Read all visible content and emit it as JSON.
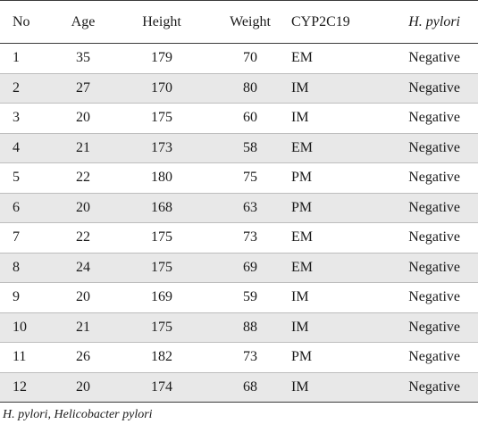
{
  "table": {
    "headers": {
      "no": "No",
      "age": "Age",
      "height": "Height",
      "weight": "Weight",
      "cyp2c19": "CYP2C19",
      "h_pylori": "H. pylori"
    },
    "rows": [
      {
        "no": "1",
        "age": "35",
        "height": "179",
        "weight": "70",
        "cyp2c19": "EM",
        "h_pylori": "Negative"
      },
      {
        "no": "2",
        "age": "27",
        "height": "170",
        "weight": "80",
        "cyp2c19": "IM",
        "h_pylori": "Negative"
      },
      {
        "no": "3",
        "age": "20",
        "height": "175",
        "weight": "60",
        "cyp2c19": "IM",
        "h_pylori": "Negative"
      },
      {
        "no": "4",
        "age": "21",
        "height": "173",
        "weight": "58",
        "cyp2c19": "EM",
        "h_pylori": "Negative"
      },
      {
        "no": "5",
        "age": "22",
        "height": "180",
        "weight": "75",
        "cyp2c19": "PM",
        "h_pylori": "Negative"
      },
      {
        "no": "6",
        "age": "20",
        "height": "168",
        "weight": "63",
        "cyp2c19": "PM",
        "h_pylori": "Negative"
      },
      {
        "no": "7",
        "age": "22",
        "height": "175",
        "weight": "73",
        "cyp2c19": "EM",
        "h_pylori": "Negative"
      },
      {
        "no": "8",
        "age": "24",
        "height": "175",
        "weight": "69",
        "cyp2c19": "EM",
        "h_pylori": "Negative"
      },
      {
        "no": "9",
        "age": "20",
        "height": "169",
        "weight": "59",
        "cyp2c19": "IM",
        "h_pylori": "Negative"
      },
      {
        "no": "10",
        "age": "21",
        "height": "175",
        "weight": "88",
        "cyp2c19": "IM",
        "h_pylori": "Negative"
      },
      {
        "no": "11",
        "age": "26",
        "height": "182",
        "weight": "73",
        "cyp2c19": "PM",
        "h_pylori": "Negative"
      },
      {
        "no": "12",
        "age": "20",
        "height": "174",
        "weight": "68",
        "cyp2c19": "IM",
        "h_pylori": "Negative"
      }
    ]
  },
  "footnote": "H. pylori, Helicobacter pylori",
  "colors": {
    "stripe": "#e8e8e8",
    "rule": "#3a3a3a",
    "divider": "#bdbdbd",
    "text": "#1a1a1a"
  }
}
